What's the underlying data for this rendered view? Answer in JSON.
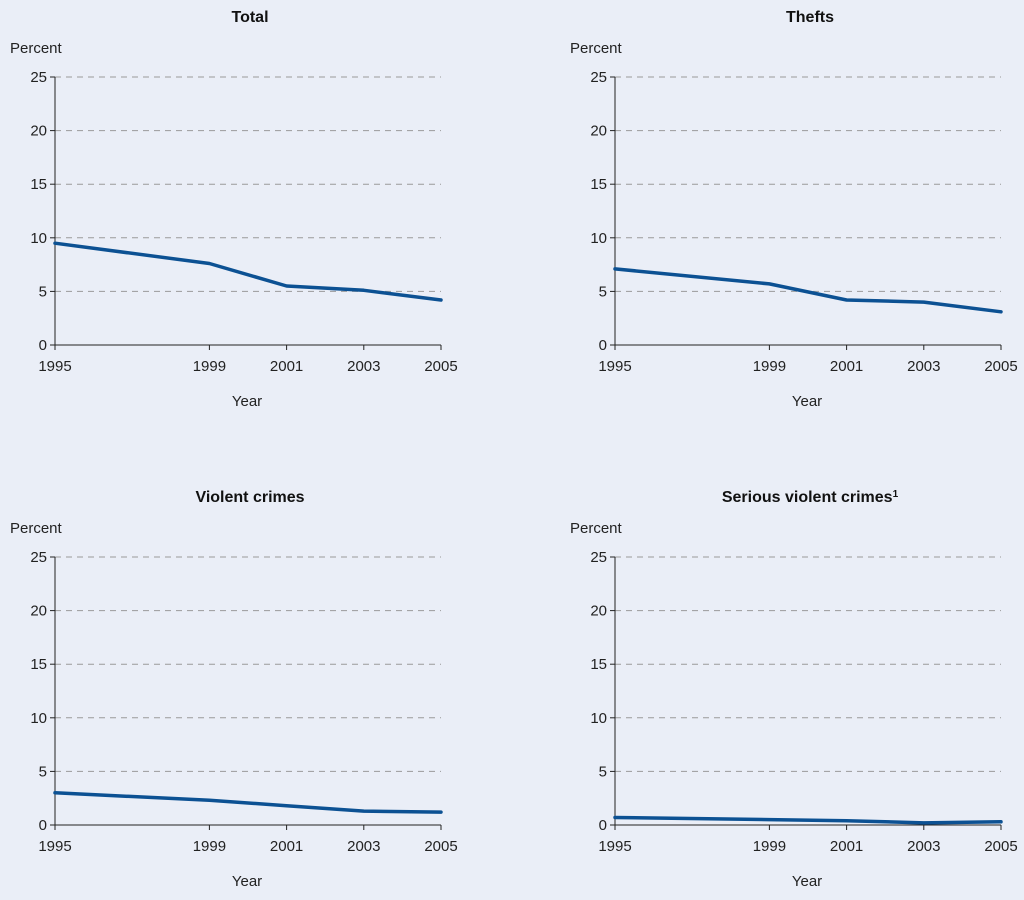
{
  "chart_data": [
    {
      "type": "line",
      "title": "Total",
      "title_sup": "",
      "ylabel": "Percent",
      "xlabel": "Year",
      "ylim": [
        0,
        25
      ],
      "yticks": [
        0,
        5,
        10,
        15,
        20,
        25
      ],
      "x": [
        1995,
        1999,
        2001,
        2003,
        2005
      ],
      "series": [
        {
          "values": [
            9.5,
            7.6,
            5.5,
            5.1,
            4.2
          ],
          "color": "#0c5193"
        }
      ],
      "grid": true
    },
    {
      "type": "line",
      "title": "Thefts",
      "title_sup": "",
      "ylabel": "Percent",
      "xlabel": "Year",
      "ylim": [
        0,
        25
      ],
      "yticks": [
        0,
        5,
        10,
        15,
        20,
        25
      ],
      "x": [
        1995,
        1999,
        2001,
        2003,
        2005
      ],
      "series": [
        {
          "values": [
            7.1,
            5.7,
            4.2,
            4.0,
            3.1
          ],
          "color": "#0c5193"
        }
      ],
      "grid": true
    },
    {
      "type": "line",
      "title": "Violent crimes",
      "title_sup": "",
      "ylabel": "Percent",
      "xlabel": "Year",
      "ylim": [
        0,
        25
      ],
      "yticks": [
        0,
        5,
        10,
        15,
        20,
        25
      ],
      "x": [
        1995,
        1999,
        2001,
        2003,
        2005
      ],
      "series": [
        {
          "values": [
            3.0,
            2.3,
            1.8,
            1.3,
            1.2
          ],
          "color": "#0c5193"
        }
      ],
      "grid": true
    },
    {
      "type": "line",
      "title": "Serious violent crimes",
      "title_sup": "1",
      "ylabel": "Percent",
      "xlabel": "Year",
      "ylim": [
        0,
        25
      ],
      "yticks": [
        0,
        5,
        10,
        15,
        20,
        25
      ],
      "x": [
        1995,
        1999,
        2001,
        2003,
        2005
      ],
      "series": [
        {
          "values": [
            0.7,
            0.5,
            0.4,
            0.2,
            0.3
          ],
          "color": "#0c5193"
        }
      ],
      "grid": true
    }
  ]
}
